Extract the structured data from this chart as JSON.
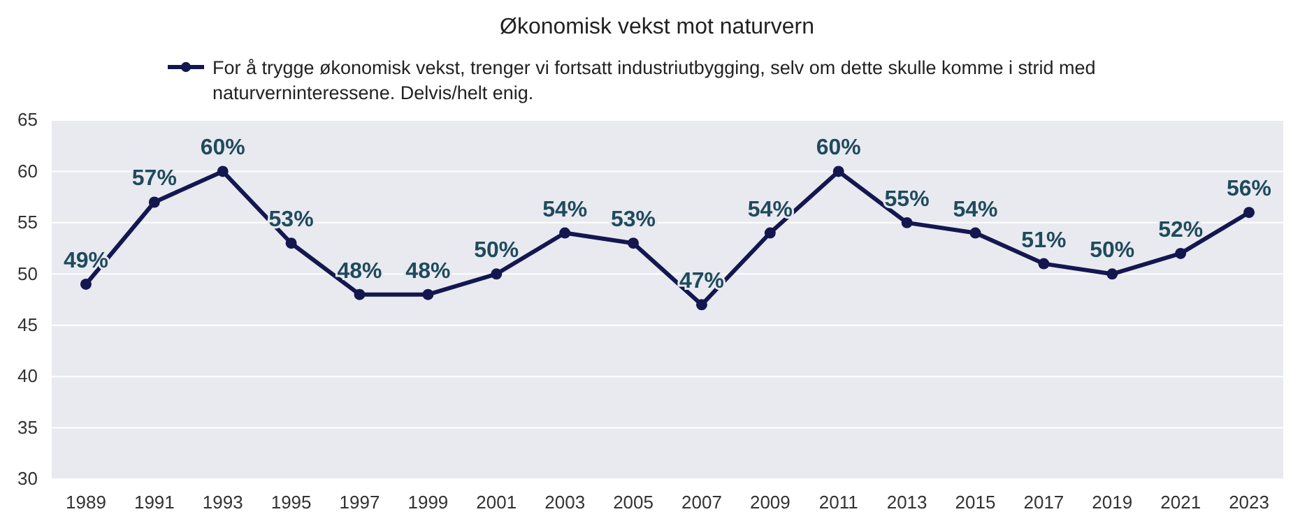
{
  "chart_data": {
    "type": "line",
    "title": "Økonomisk vekst mot naturvern",
    "categories": [
      "1989",
      "1991",
      "1993",
      "1995",
      "1997",
      "1999",
      "2001",
      "2003",
      "2005",
      "2007",
      "2009",
      "2011",
      "2013",
      "2015",
      "2017",
      "2019",
      "2021",
      "2023"
    ],
    "series": [
      {
        "name": "For å trygge økonomisk vekst, trenger vi fortsatt industriutbygging, selv om dette skulle komme i strid med naturverninteressene. Delvis/helt enig.",
        "color": "#14174f",
        "values": [
          49,
          57,
          60,
          53,
          48,
          48,
          50,
          54,
          53,
          47,
          54,
          60,
          55,
          54,
          51,
          50,
          52,
          56
        ],
        "value_labels": [
          "49%",
          "57%",
          "60%",
          "53%",
          "48%",
          "48%",
          "50%",
          "54%",
          "53%",
          "47%",
          "54%",
          "60%",
          "55%",
          "54%",
          "51%",
          "50%",
          "52%",
          "56%"
        ]
      }
    ],
    "ylim": [
      30,
      65
    ],
    "yticks": [
      30,
      35,
      40,
      45,
      50,
      55,
      60,
      65
    ],
    "grid": "y",
    "legend": "top",
    "marker": "circle",
    "line_style": "solid"
  }
}
